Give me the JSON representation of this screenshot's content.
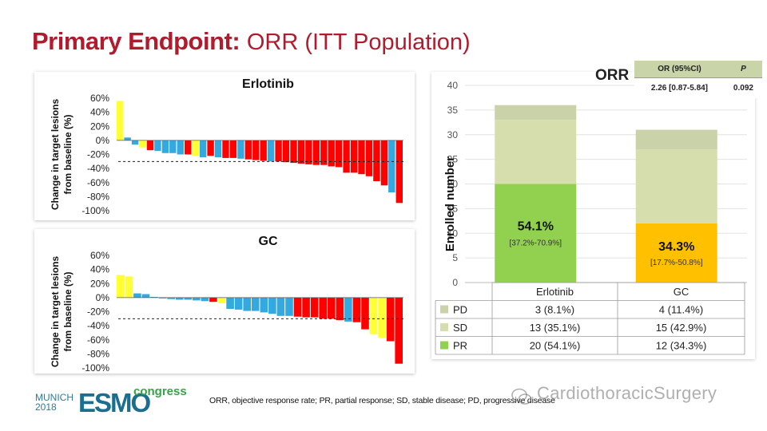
{
  "title": {
    "bold": "Primary Endpoint:",
    "regular": "ORR (ITT Population)"
  },
  "waterfall_ylabel": [
    "Change in target lesions",
    "from baseline (%)"
  ],
  "colors": {
    "PR": "#ff0000",
    "SD": "#33a9e0",
    "PD": "#ffff33",
    "PR_stack": "#92d050",
    "SD_stack": "#d6deae",
    "PD_stack": "#c9d2a8",
    "title": "#b01c2e"
  },
  "chart_data": [
    {
      "type": "bar",
      "title": "Erlotinib",
      "ylim": [
        -100,
        60
      ],
      "y_ticks": [
        "60%",
        "40%",
        "20%",
        "0%",
        "-20%",
        "-40%",
        "-60%",
        "-80%",
        "-100%"
      ],
      "threshold": -30,
      "series": [
        {
          "values": [
            56,
            4,
            -6,
            -10,
            -14,
            -15,
            -18,
            -18,
            -20,
            -20,
            -22,
            -24,
            -22,
            -24,
            -25,
            -25,
            -26,
            -27,
            -28,
            -29,
            -30,
            -30,
            -31,
            -32,
            -33,
            -34,
            -35,
            -35,
            -37,
            -38,
            -46,
            -46,
            -48,
            -51,
            -58,
            -64,
            -74,
            -89
          ]
        }
      ],
      "bar_colors": [
        "PD",
        "SD",
        "SD",
        "PD",
        "PR",
        "SD",
        "SD",
        "SD",
        "SD",
        "PR",
        "PD",
        "SD",
        "PR",
        "SD",
        "PR",
        "PR",
        "SD",
        "PR",
        "PR",
        "PR",
        "SD",
        "PR",
        "PR",
        "PR",
        "PR",
        "PR",
        "PR",
        "PR",
        "PR",
        "PR",
        "PR",
        "PR",
        "PR",
        "PR",
        "PR",
        "PR",
        "SD",
        "PR"
      ]
    },
    {
      "type": "bar",
      "title": "GC",
      "ylim": [
        -100,
        60
      ],
      "y_ticks": [
        "60%",
        "40%",
        "20%",
        "0%",
        "-20%",
        "-40%",
        "-60%",
        "-80%",
        "-100%"
      ],
      "threshold": -30,
      "series": [
        {
          "values": [
            32,
            30,
            6,
            5,
            1,
            0,
            -2,
            -3,
            -3,
            -4,
            -5,
            -6,
            -8,
            -16,
            -17,
            -19,
            -19,
            -21,
            -23,
            -26,
            -26,
            -27,
            -28,
            -28,
            -30,
            -30,
            -32,
            -34,
            -35,
            -45,
            -52,
            -57,
            -62,
            -94
          ]
        }
      ],
      "bar_colors": [
        "PD",
        "PD",
        "SD",
        "SD",
        "SD",
        "SD",
        "SD",
        "SD",
        "SD",
        "SD",
        "SD",
        "PR",
        "PD",
        "SD",
        "SD",
        "SD",
        "SD",
        "SD",
        "SD",
        "SD",
        "SD",
        "PR",
        "PR",
        "PR",
        "PR",
        "PR",
        "PR",
        "SD",
        "PR",
        "PR",
        "PD",
        "PD",
        "PR",
        "PR"
      ]
    },
    {
      "type": "bar",
      "stacked": true,
      "ylabel": "Enrolled number",
      "ylim": [
        0,
        40
      ],
      "y_ticks": [
        0,
        5,
        10,
        15,
        20,
        25,
        30,
        35,
        40
      ],
      "categories": [
        "Erlotinib",
        "GC"
      ],
      "series": [
        {
          "name": "PR",
          "values": [
            20,
            12
          ]
        },
        {
          "name": "SD",
          "values": [
            13,
            15
          ]
        },
        {
          "name": "PD",
          "values": [
            3,
            4
          ]
        }
      ],
      "bar_labels": [
        {
          "pct": "54.1%",
          "ci": "[37.2%-70.9%]"
        },
        {
          "pct": "34.3%",
          "ci": "[17.7%-50.8%]"
        }
      ],
      "table": {
        "rows": [
          {
            "label": "PD",
            "cells": [
              "3 (8.1%)",
              "4 (11.4%)"
            ]
          },
          {
            "label": "SD",
            "cells": [
              "13 (35.1%)",
              "15 (42.9%)"
            ]
          },
          {
            "label": "PR",
            "cells": [
              "20 (54.1%)",
              "12 (34.3%)"
            ]
          }
        ]
      }
    }
  ],
  "orr_label": "ORR",
  "or_table": {
    "col1": "OR (95%CI)",
    "col2": "P",
    "val1": "2.26 [0.87-5.84]",
    "val2": "0.092"
  },
  "footnote": "ORR, objective response rate; PR, partial response; SD, stable disease; PD, progressive disease",
  "logo": {
    "city": "MUNICH",
    "year": "2018",
    "brand": "ESMO",
    "tag": "congress"
  },
  "watermark": "CardiothoracicSurgery"
}
